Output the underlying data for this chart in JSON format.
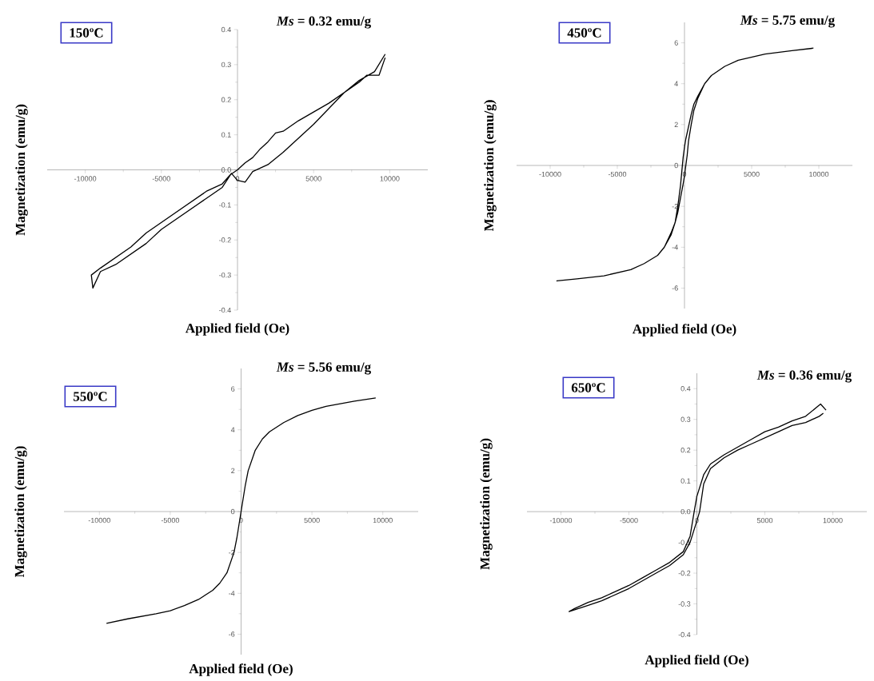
{
  "chart_data": [
    {
      "type": "line",
      "title": "150ºC",
      "annotations": [
        "*Ms* = 0.32 emu/g"
      ],
      "xlabel": "Applied field (Oe)",
      "ylabel": "Magnetization (emu/g)",
      "xlim": [
        -12500,
        12500
      ],
      "ylim": [
        -0.4,
        0.4
      ],
      "xticks": [
        -10000,
        -5000,
        0,
        5000,
        10000
      ],
      "yticks": [
        -0.4,
        -0.3,
        -0.2,
        -0.1,
        {
          "value": 0,
          "label": "0.0"
        },
        0.1,
        0.2,
        0.3,
        0.4
      ],
      "series": [
        {
          "color": "#000000",
          "x": [
            9700,
            9300,
            8500,
            8000,
            7000,
            6000,
            5000,
            4000,
            3000,
            2500,
            2000,
            1500,
            1000,
            500,
            0,
            -500,
            -1000,
            -2000,
            -3000,
            -4000,
            -5000,
            -6000,
            -7000,
            -8000,
            -9000,
            -9600,
            -9500,
            -9000,
            -8000,
            -7000,
            -6000,
            -5000,
            -4000,
            -3000,
            -2000,
            -1000,
            -400,
            0,
            500,
            1000,
            2000,
            3000,
            4000,
            5000,
            6000,
            7000,
            8000,
            9000,
            9700
          ],
          "values": [
            0.32,
            0.27,
            0.27,
            0.25,
            0.22,
            0.19,
            0.165,
            0.14,
            0.11,
            0.105,
            0.08,
            0.06,
            0.035,
            0.02,
            0.0,
            -0.015,
            -0.04,
            -0.06,
            -0.09,
            -0.12,
            -0.15,
            -0.18,
            -0.22,
            -0.25,
            -0.28,
            -0.3,
            -0.337,
            -0.29,
            -0.27,
            -0.24,
            -0.21,
            -0.17,
            -0.14,
            -0.11,
            -0.08,
            -0.05,
            -0.01,
            -0.03,
            -0.035,
            -0.005,
            0.015,
            0.05,
            0.09,
            0.13,
            0.175,
            0.22,
            0.255,
            0.28,
            0.33
          ]
        }
      ]
    },
    {
      "type": "line",
      "title": "450ºC",
      "annotations": [
        "*Ms* = 5.75 emu/g"
      ],
      "xlabel": "Applied field (Oe)",
      "ylabel": "Magnetization (emu/g)",
      "xlim": [
        -12500,
        12500
      ],
      "ylim": [
        -7,
        7
      ],
      "xticks": [
        -10000,
        -5000,
        0,
        5000,
        10000
      ],
      "yticks": [
        -6,
        -4,
        -2,
        0,
        2,
        4,
        6
      ],
      "series": [
        {
          "color": "#000000",
          "x": [
            9600,
            8000,
            6000,
            4000,
            3000,
            2000,
            1500,
            1000,
            700,
            500,
            100,
            0,
            -100,
            -200,
            -300,
            -500,
            -700,
            -1000,
            -1500,
            -2000,
            -3000,
            -4000,
            -6000,
            -8000,
            -9500,
            -8000,
            -6000,
            -4000,
            -3000,
            -2000,
            -1500,
            -1000,
            -700,
            -500,
            -100,
            0,
            100,
            200,
            300,
            500,
            700,
            1000,
            1500,
            2000,
            3000,
            4000,
            6000,
            8000,
            9500
          ],
          "values": [
            5.74,
            5.62,
            5.45,
            5.15,
            4.85,
            4.4,
            4.0,
            3.4,
            3.0,
            2.5,
            1.3,
            0.9,
            0.4,
            -0.3,
            -1.0,
            -2.0,
            -2.8,
            -3.4,
            -4.0,
            -4.4,
            -4.8,
            -5.1,
            -5.4,
            -5.55,
            -5.65,
            -5.55,
            -5.4,
            -5.1,
            -4.8,
            -4.4,
            -4.0,
            -3.3,
            -2.8,
            -2.3,
            -0.9,
            -0.5,
            0.0,
            0.5,
            1.2,
            2.0,
            2.7,
            3.3,
            4.0,
            4.4,
            4.85,
            5.15,
            5.45,
            5.62,
            5.73
          ]
        }
      ]
    },
    {
      "type": "line",
      "title": "550ºC",
      "annotations": [
        "*Ms* = 5.56 emu/g"
      ],
      "xlabel": "Applied field (Oe)",
      "ylabel": "Magnetization (emu/g)",
      "xlim": [
        -12500,
        12500
      ],
      "ylim": [
        -7,
        7
      ],
      "xticks": [
        -10000,
        -5000,
        0,
        5000,
        10000
      ],
      "yticks": [
        -6,
        -4,
        -2,
        0,
        2,
        4,
        6
      ],
      "series": [
        {
          "color": "#000000",
          "x": [
            -9500,
            -8000,
            -6000,
            -5000,
            -4000,
            -3000,
            -2000,
            -1500,
            -1000,
            -500,
            -300,
            0,
            300,
            500,
            1000,
            1500,
            2000,
            3000,
            4000,
            5000,
            6000,
            8000,
            9500
          ],
          "values": [
            -5.47,
            -5.25,
            -5.0,
            -4.85,
            -4.6,
            -4.3,
            -3.85,
            -3.5,
            -3.0,
            -2.0,
            -1.3,
            0.0,
            1.3,
            2.0,
            3.0,
            3.55,
            3.9,
            4.35,
            4.7,
            4.95,
            5.15,
            5.4,
            5.56
          ]
        }
      ]
    },
    {
      "type": "line",
      "title": "650ºC",
      "annotations": [
        "*Ms* = 0.36 emu/g"
      ],
      "xlabel": "Applied field (Oe)",
      "ylabel": "Magnetization (emu/g)",
      "xlim": [
        -12500,
        12500
      ],
      "ylim": [
        -0.4,
        0.45
      ],
      "xticks": [
        -10000,
        -5000,
        0,
        5000,
        10000
      ],
      "yticks": [
        -0.4,
        -0.3,
        -0.2,
        -0.1,
        {
          "value": 0,
          "label": "0.0"
        },
        0.1,
        0.2,
        0.3,
        0.4
      ],
      "series": [
        {
          "color": "#000000",
          "x": [
            9500,
            9100,
            8000,
            7000,
            6000,
            5000,
            4000,
            2000,
            1000,
            500,
            0,
            -200,
            -500,
            -1000,
            -2000,
            -3000,
            -4000,
            -5000,
            -6000,
            -7000,
            -8000,
            -9000,
            -9400,
            -8000,
            -7000,
            -5000,
            -3000,
            -2000,
            -1000,
            -500,
            0,
            200,
            500,
            1000,
            2000,
            3000,
            4000,
            6000,
            7000,
            8000,
            9000,
            9300
          ],
          "values": [
            0.33,
            0.35,
            0.31,
            0.295,
            0.275,
            0.26,
            0.235,
            0.185,
            0.155,
            0.12,
            0.05,
            0.0,
            -0.08,
            -0.13,
            -0.165,
            -0.19,
            -0.215,
            -0.24,
            -0.26,
            -0.28,
            -0.295,
            -0.315,
            -0.325,
            -0.305,
            -0.29,
            -0.25,
            -0.2,
            -0.175,
            -0.14,
            -0.1,
            -0.03,
            0.0,
            0.09,
            0.14,
            0.175,
            0.2,
            0.22,
            0.26,
            0.28,
            0.29,
            0.31,
            0.32
          ]
        }
      ]
    }
  ]
}
